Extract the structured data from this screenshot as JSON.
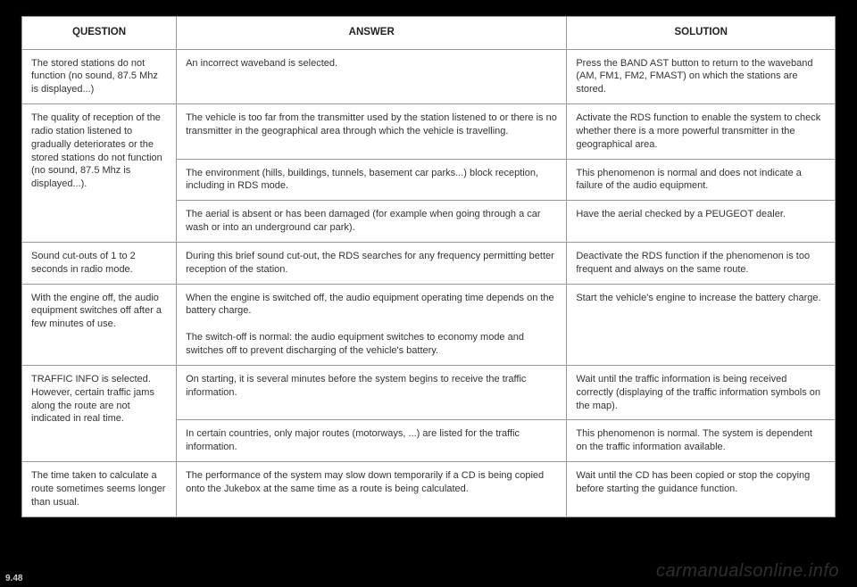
{
  "header": {
    "question": "QUESTION",
    "answer": "ANSWER",
    "solution": "SOLUTION"
  },
  "rows": {
    "r1": {
      "q": "The stored stations do not function (no sound, 87.5 Mhz is displayed...)",
      "a": "An incorrect waveband is selected.",
      "s": "Press the BAND AST button to return to the waveband (AM, FM1, FM2, FMAST) on which the stations are stored."
    },
    "r2": {
      "q": "The quality of reception of the radio station listened to gradually deteriorates or the stored stations do not function (no sound, 87.5 Mhz is displayed...).",
      "a1": "The vehicle is too far from the transmitter used by the station listened to or there is no transmitter in the geographical area through which the vehicle is travelling.",
      "s1": "Activate the RDS function to enable the system to check whether there is a more powerful transmitter in the geographical area.",
      "a2": "The environment (hills, buildings, tunnels, basement car parks...) block reception, including in RDS mode.",
      "s2": "This phenomenon is normal and does not indicate a failure of the audio equipment.",
      "a3": "The aerial is absent or has been damaged (for example when going through a car wash or into an underground car park).",
      "s3": "Have the aerial checked by a PEUGEOT dealer."
    },
    "r3": {
      "q": "Sound cut-outs of 1 to 2 seconds in radio mode.",
      "a": "During this brief sound cut-out, the RDS searches for any frequency permitting better reception of the station.",
      "s": "Deactivate the RDS function if the phenomenon is too frequent and always on the same route."
    },
    "r4": {
      "q": "With the engine off, the audio equipment switches off after a few minutes of use.",
      "a1": "When the engine is switched off, the audio equipment operating time depends on the battery charge.",
      "a2": "The switch-off is normal: the audio equipment switches to economy mode and switches off to prevent discharging of the vehicle's battery.",
      "s": "Start the vehicle's engine to increase the battery charge."
    },
    "r5": {
      "q": "TRAFFIC INFO is selected. However, certain traffic jams along the route are not indicated in real time.",
      "a1": "On starting, it is several minutes before the system begins to receive the traffic information.",
      "s1": "Wait until the traffic information is being received correctly (displaying of the traffic information symbols on the map).",
      "a2": "In certain countries, only major routes (motorways, ...) are listed for the traffic information.",
      "s2": "This phenomenon is normal. The system is dependent on the traffic information available."
    },
    "r6": {
      "q": "The time taken to calculate a route sometimes seems longer than usual.",
      "a": "The performance of the system may slow down temporarily if a CD is being copied onto the Jukebox at the same time as a route is being calculated.",
      "s": "Wait until the CD has been copied or stop the copying before starting the guidance function."
    }
  },
  "watermark": "carmanualsonline.info",
  "pagenum": "9.48"
}
